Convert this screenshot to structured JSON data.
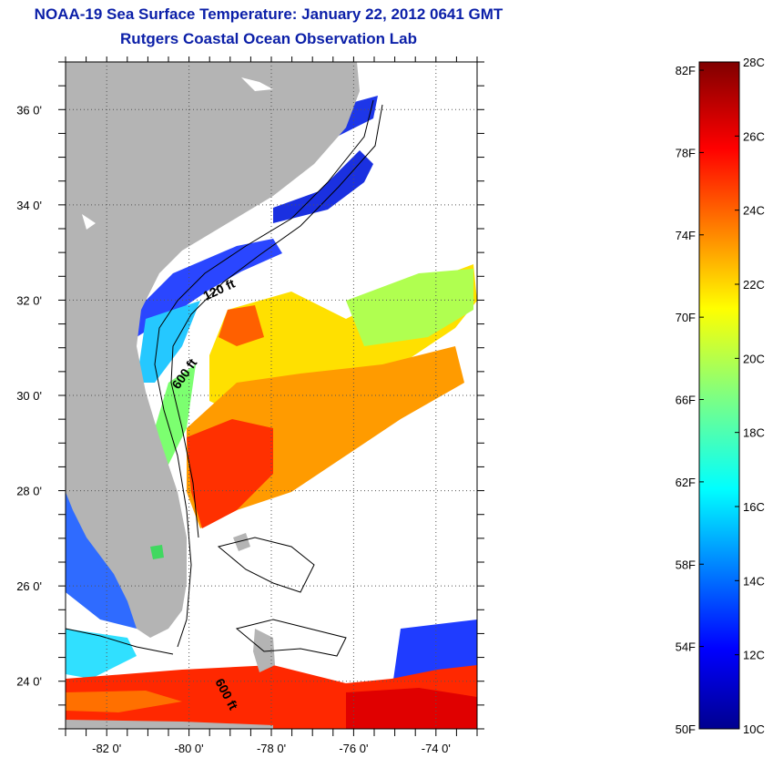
{
  "header": {
    "title": "NOAA-19 Sea Surface Temperature:  January 22, 2012 0641 GMT",
    "subtitle": "Rutgers Coastal Ocean Observation Lab"
  },
  "map": {
    "lat_ticks": [
      "24 0'",
      "26 0'",
      "28 0'",
      "30 0'",
      "32 0'",
      "34 0'",
      "36 0'"
    ],
    "lon_ticks": [
      "-82 0'",
      "-80 0'",
      "-78 0'",
      "-76 0'",
      "-74 0'"
    ],
    "lat_range": [
      23.0,
      37.0
    ],
    "lon_range": [
      -83.0,
      -73.0
    ],
    "contour_labels": [
      "120 ft",
      "600 ft",
      "600 ft"
    ],
    "land_color": "#b4b4b4",
    "cloud_color": "#ffffff"
  },
  "colorbar": {
    "f_labels": [
      "82F",
      "78F",
      "74F",
      "70F",
      "66F",
      "62F",
      "58F",
      "54F",
      "50F"
    ],
    "c_labels": [
      "28C",
      "26C",
      "24C",
      "22C",
      "20C",
      "18C",
      "16C",
      "14C",
      "12C",
      "10C"
    ],
    "min_c": 10,
    "max_c": 28,
    "colormap": "jet"
  }
}
